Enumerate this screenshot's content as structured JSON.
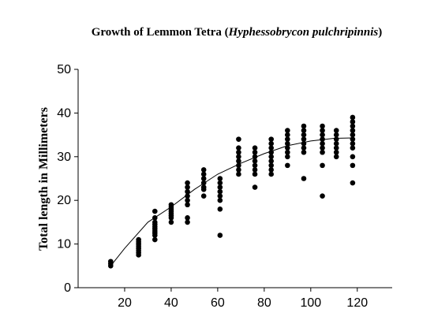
{
  "chart_data": {
    "type": "scatter",
    "title_parts": {
      "pre": "Growth of Lemmon Tetra (",
      "species": "Hyphessobrycon pulchripinnis",
      "post": ")"
    },
    "xlabel": "",
    "ylabel": "Total length in Millimeters",
    "xlim": [
      0,
      135
    ],
    "ylim": [
      0,
      50
    ],
    "xticks": [
      20,
      40,
      60,
      80,
      100,
      120
    ],
    "yticks": [
      0,
      10,
      20,
      30,
      40,
      50
    ],
    "grid": false,
    "point_color": "#000000",
    "points": [
      [
        14,
        5
      ],
      [
        14,
        5.5
      ],
      [
        14,
        6
      ],
      [
        26,
        7.5
      ],
      [
        26,
        8
      ],
      [
        26,
        8.5
      ],
      [
        26,
        9
      ],
      [
        26,
        9.5
      ],
      [
        26,
        10
      ],
      [
        26,
        10.5
      ],
      [
        26,
        11
      ],
      [
        33,
        11
      ],
      [
        33,
        12
      ],
      [
        33,
        12.5
      ],
      [
        33,
        13
      ],
      [
        33,
        13.5
      ],
      [
        33,
        14
      ],
      [
        33,
        14.5
      ],
      [
        33,
        15
      ],
      [
        33,
        16
      ],
      [
        33,
        17.5
      ],
      [
        40,
        15
      ],
      [
        40,
        16
      ],
      [
        40,
        16.5
      ],
      [
        40,
        17
      ],
      [
        40,
        17.5
      ],
      [
        40,
        18
      ],
      [
        40,
        18.5
      ],
      [
        40,
        19
      ],
      [
        47,
        15
      ],
      [
        47,
        16
      ],
      [
        47,
        19
      ],
      [
        47,
        20
      ],
      [
        47,
        21
      ],
      [
        47,
        22
      ],
      [
        47,
        23
      ],
      [
        47,
        24
      ],
      [
        54,
        21
      ],
      [
        54,
        22.5
      ],
      [
        54,
        23
      ],
      [
        54,
        24
      ],
      [
        54,
        25
      ],
      [
        54,
        26
      ],
      [
        54,
        27
      ],
      [
        61,
        12
      ],
      [
        61,
        18
      ],
      [
        61,
        20
      ],
      [
        61,
        21
      ],
      [
        61,
        22
      ],
      [
        61,
        23
      ],
      [
        61,
        24
      ],
      [
        61,
        25
      ],
      [
        69,
        26
      ],
      [
        69,
        27
      ],
      [
        69,
        28
      ],
      [
        69,
        29
      ],
      [
        69,
        30
      ],
      [
        69,
        31
      ],
      [
        69,
        32
      ],
      [
        69,
        34
      ],
      [
        76,
        23
      ],
      [
        76,
        26
      ],
      [
        76,
        27
      ],
      [
        76,
        28
      ],
      [
        76,
        29
      ],
      [
        76,
        30
      ],
      [
        76,
        31
      ],
      [
        76,
        32
      ],
      [
        83,
        26
      ],
      [
        83,
        27
      ],
      [
        83,
        28
      ],
      [
        83,
        29
      ],
      [
        83,
        30
      ],
      [
        83,
        31
      ],
      [
        83,
        32
      ],
      [
        83,
        33
      ],
      [
        83,
        34
      ],
      [
        90,
        28
      ],
      [
        90,
        30
      ],
      [
        90,
        31
      ],
      [
        90,
        32
      ],
      [
        90,
        33
      ],
      [
        90,
        34
      ],
      [
        90,
        35
      ],
      [
        90,
        36
      ],
      [
        97,
        25
      ],
      [
        97,
        31
      ],
      [
        97,
        32
      ],
      [
        97,
        33
      ],
      [
        97,
        34
      ],
      [
        97,
        35
      ],
      [
        97,
        36
      ],
      [
        97,
        37
      ],
      [
        105,
        21
      ],
      [
        105,
        28
      ],
      [
        105,
        31
      ],
      [
        105,
        32
      ],
      [
        105,
        33
      ],
      [
        105,
        34
      ],
      [
        105,
        35
      ],
      [
        105,
        36
      ],
      [
        105,
        37
      ],
      [
        111,
        30
      ],
      [
        111,
        31
      ],
      [
        111,
        32
      ],
      [
        111,
        33
      ],
      [
        111,
        34
      ],
      [
        111,
        35
      ],
      [
        111,
        36
      ],
      [
        118,
        24
      ],
      [
        118,
        28
      ],
      [
        118,
        30
      ],
      [
        118,
        32
      ],
      [
        118,
        33
      ],
      [
        118,
        34
      ],
      [
        118,
        35
      ],
      [
        118,
        36
      ],
      [
        118,
        37
      ],
      [
        118,
        38
      ],
      [
        118,
        39
      ]
    ],
    "fit_line": {
      "x": [
        14,
        20,
        30,
        40,
        50,
        60,
        70,
        80,
        90,
        100,
        110,
        118
      ],
      "y": [
        5,
        9,
        15,
        18.5,
        22.5,
        26,
        28.5,
        30.7,
        32.5,
        33.6,
        34.2,
        34.3
      ]
    }
  }
}
